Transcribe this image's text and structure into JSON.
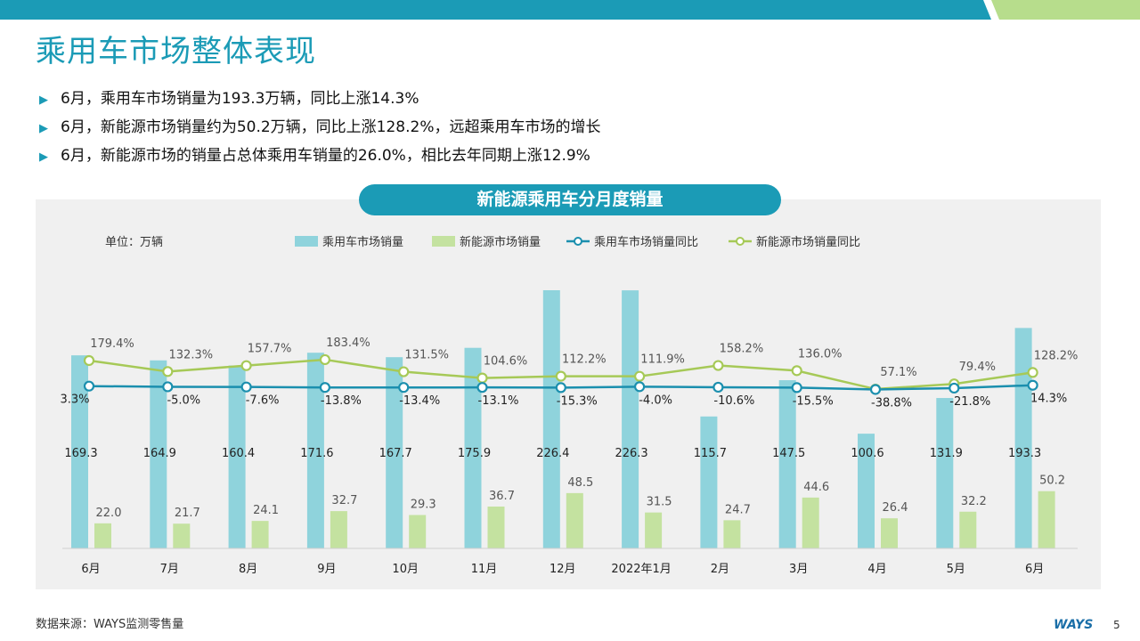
{
  "title": "乘用车市场整体表现",
  "bullets": [
    "6月，乘用车市场销量为193.3万辆，同比上涨14.3%",
    "6月，新能源市场销量约为50.2万辆，同比上涨128.2%，远超乘用车市场的增长",
    "6月，新能源市场的销量占总体乘用车销量的26.0%，相比去年同期上涨12.9%"
  ],
  "footer": {
    "source": "数据来源：WAYS监测零售量",
    "logo": "WAYS",
    "page": "5"
  },
  "colors": {
    "accent": "#1b9bb6",
    "bar_pv": "#8fd3dc",
    "bar_nev": "#c4e2a0",
    "line_pv": "#1b8fae",
    "line_nev": "#a6c957",
    "top_green": "#b7dd8c"
  },
  "chart_data": {
    "type": "bar",
    "title": "新能源乘用车分月度销量",
    "unit_label": "单位：万辆",
    "categories": [
      "6月",
      "7月",
      "8月",
      "9月",
      "10月",
      "11月",
      "12月",
      "2022年1月",
      "2月",
      "3月",
      "4月",
      "5月",
      "6月"
    ],
    "series": [
      {
        "name": "乘用车市场销量",
        "kind": "bar",
        "values": [
          169.3,
          164.9,
          160.4,
          171.6,
          167.7,
          175.9,
          226.4,
          226.3,
          115.7,
          147.5,
          100.6,
          131.9,
          193.3
        ]
      },
      {
        "name": "新能源市场销量",
        "kind": "bar",
        "values": [
          22.0,
          21.7,
          24.1,
          32.7,
          29.3,
          36.7,
          48.5,
          31.5,
          24.7,
          44.6,
          26.4,
          32.2,
          50.2
        ]
      },
      {
        "name": "乘用车市场销量同比",
        "kind": "line",
        "values": [
          3.3,
          -5.0,
          -7.6,
          -13.8,
          -13.4,
          -13.1,
          -15.3,
          -4.0,
          -10.6,
          -15.5,
          -38.8,
          -21.8,
          14.3
        ]
      },
      {
        "name": "新能源市场销量同比",
        "kind": "line",
        "values": [
          179.4,
          132.3,
          157.7,
          183.4,
          131.5,
          104.6,
          112.2,
          111.9,
          158.2,
          136.0,
          57.1,
          79.4,
          128.2
        ]
      }
    ],
    "legend_position": "top",
    "grid": false
  }
}
